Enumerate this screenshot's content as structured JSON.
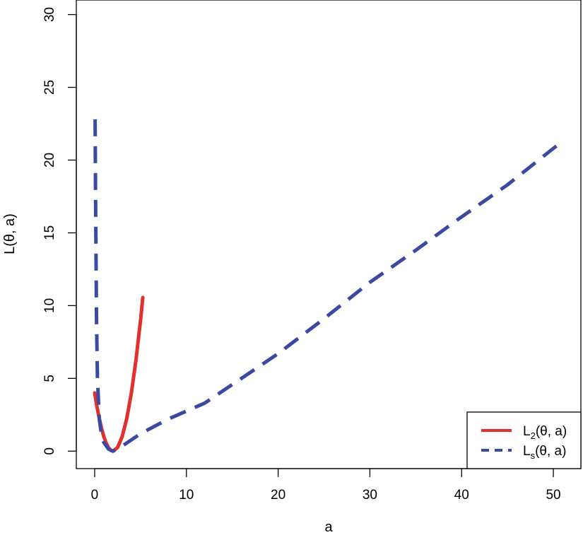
{
  "chart_data": {
    "type": "line",
    "title": "",
    "xlabel": "a",
    "ylabel": "L(θ, a)",
    "xlim": [
      -2,
      53
    ],
    "ylim": [
      -1.2,
      31
    ],
    "xticks": [
      0,
      10,
      20,
      30,
      40,
      50
    ],
    "yticks": [
      0,
      5,
      10,
      15,
      20,
      25,
      30
    ],
    "grid": false,
    "legend_position": "bottom-right",
    "series": [
      {
        "name": "L2(θ, a)",
        "legend_main": "L",
        "legend_sub": "2",
        "legend_rest": "(θ, a)",
        "color": "#e2302d",
        "style": "solid",
        "x": [
          0,
          0.25,
          0.5,
          0.75,
          1.0,
          1.25,
          1.5,
          1.75,
          2.0,
          2.5,
          3.0,
          3.5,
          4.0,
          4.5,
          5.0,
          5.25
        ],
        "y": [
          4.0,
          3.06,
          2.25,
          1.56,
          1.0,
          0.56,
          0.25,
          0.06,
          0.0,
          0.25,
          1.0,
          2.25,
          4.0,
          6.25,
          9.0,
          10.56
        ]
      },
      {
        "name": "Ls(θ, a)",
        "legend_main": "L",
        "legend_sub": "s",
        "legend_rest": "(θ, a)",
        "color": "#3b4aa0",
        "style": "dashed",
        "x": [
          0.05,
          0.1,
          0.2,
          0.3,
          0.5,
          0.75,
          1.0,
          1.5,
          2.0,
          3.0,
          5.0,
          8.0,
          12.0,
          16.0,
          20.0,
          25.0,
          30.0,
          35.0,
          40.0,
          45.0,
          51.0
        ],
        "y": [
          22.8,
          17.0,
          9.0,
          5.0,
          2.2,
          1.1,
          0.6,
          0.15,
          0.0,
          0.35,
          1.2,
          2.2,
          3.3,
          5.0,
          6.7,
          9.1,
          11.6,
          13.8,
          16.1,
          18.3,
          21.3
        ]
      }
    ]
  }
}
